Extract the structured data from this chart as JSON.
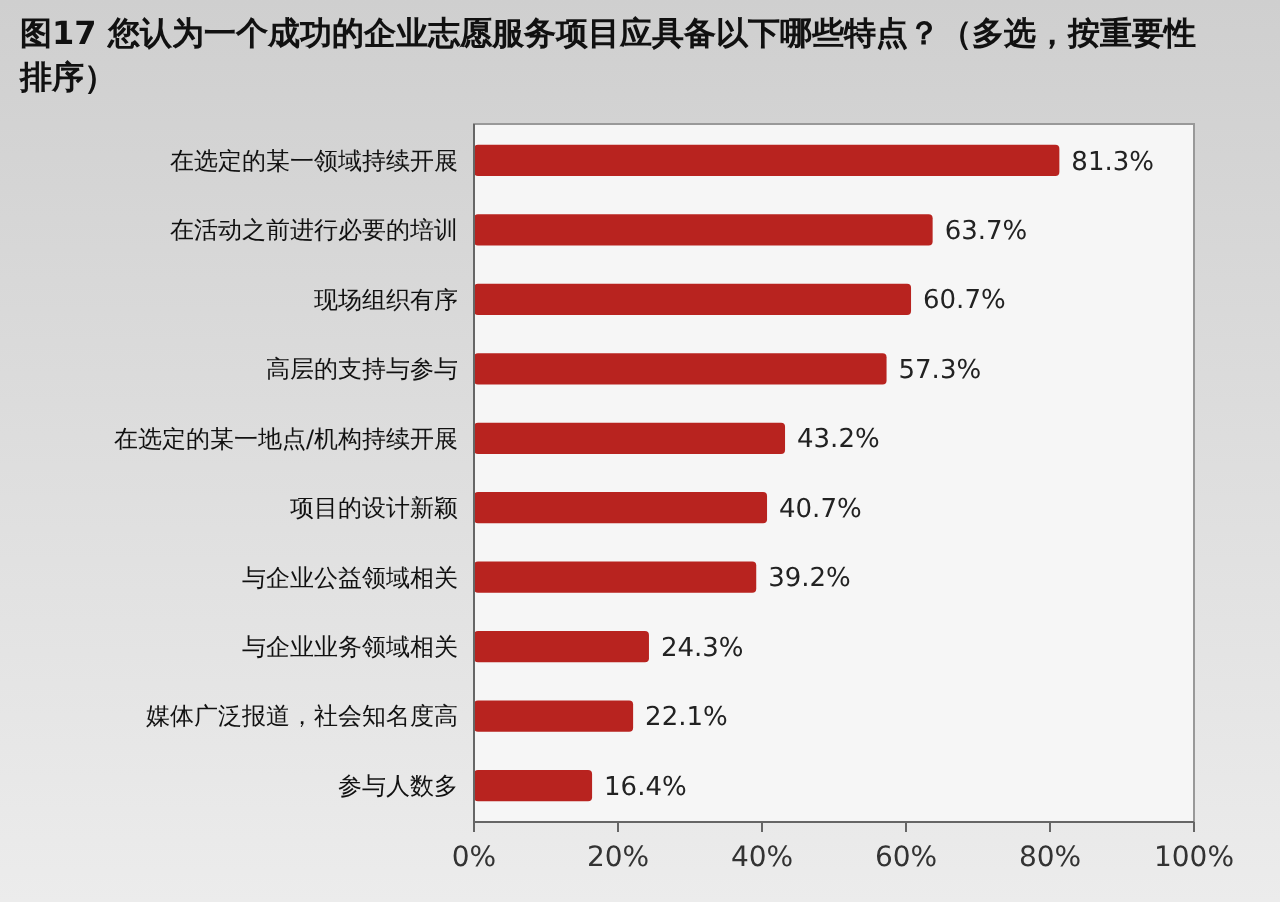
{
  "chart_data": {
    "type": "bar",
    "orientation": "horizontal",
    "title": "图17 您认为一个成功的企业志愿服务项目应具备以下哪些特点？（多选，按重要性排序）",
    "categories": [
      "在选定的某一领域持续开展",
      "在活动之前进行必要的培训",
      "现场组织有序",
      "高层的支持与参与",
      "在选定的某一地点/机构持续开展",
      "项目的设计新颖",
      "与企业公益领域相关",
      "与企业业务领域相关",
      "媒体广泛报道，社会知名度高",
      "参与人数多"
    ],
    "values": [
      81.3,
      63.7,
      60.7,
      57.3,
      43.2,
      40.7,
      39.2,
      24.3,
      22.1,
      16.4
    ],
    "value_labels": [
      "81.3%",
      "63.7%",
      "60.7%",
      "57.3%",
      "43.2%",
      "40.7%",
      "39.2%",
      "24.3%",
      "22.1%",
      "16.4%"
    ],
    "color": "#b8231f",
    "xlim": [
      0,
      100
    ],
    "xticks": [
      {
        "value": 0,
        "label": "0%"
      },
      {
        "value": 20,
        "label": "20%"
      },
      {
        "value": 40,
        "label": "40%"
      },
      {
        "value": 60,
        "label": "60%"
      },
      {
        "value": 80,
        "label": "80%"
      },
      {
        "value": 100,
        "label": "100%"
      }
    ],
    "grid": false
  }
}
